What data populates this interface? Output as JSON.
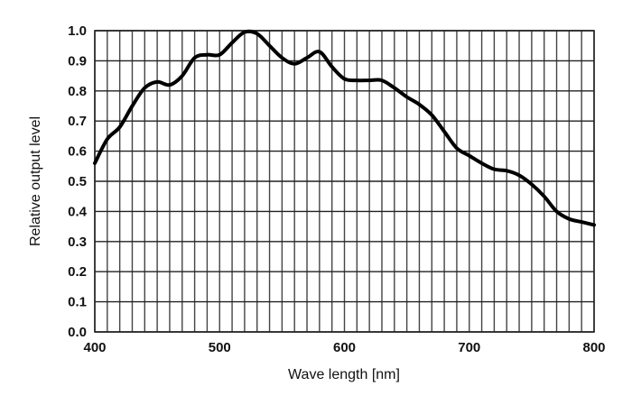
{
  "chart_data": {
    "type": "line",
    "title": "",
    "xlabel": "Wave length [nm]",
    "ylabel": "Relative output level",
    "xlim": [
      400,
      800
    ],
    "ylim": [
      0.0,
      1.0
    ],
    "xticks": [
      "400",
      "500",
      "600",
      "700",
      "800"
    ],
    "yticks": [
      "0.0",
      "0.1",
      "0.2",
      "0.3",
      "0.4",
      "0.5",
      "0.6",
      "0.7",
      "0.8",
      "0.9",
      "1.0"
    ],
    "grid": true,
    "line_color": "#000000",
    "series": [
      {
        "x": [
          400,
          410,
          420,
          430,
          440,
          450,
          460,
          470,
          480,
          490,
          500,
          510,
          520,
          530,
          540,
          550,
          560,
          570,
          580,
          590,
          600,
          610,
          620,
          630,
          640,
          650,
          660,
          670,
          680,
          690,
          700,
          710,
          720,
          730,
          740,
          750,
          760,
          770,
          780,
          790,
          800
        ],
        "y": [
          0.56,
          0.64,
          0.68,
          0.75,
          0.81,
          0.83,
          0.82,
          0.85,
          0.91,
          0.92,
          0.92,
          0.96,
          0.995,
          0.99,
          0.95,
          0.91,
          0.89,
          0.91,
          0.93,
          0.88,
          0.84,
          0.835,
          0.835,
          0.835,
          0.81,
          0.78,
          0.755,
          0.72,
          0.665,
          0.61,
          0.585,
          0.56,
          0.54,
          0.535,
          0.52,
          0.49,
          0.45,
          0.4,
          0.375,
          0.365,
          0.355
        ]
      }
    ]
  }
}
